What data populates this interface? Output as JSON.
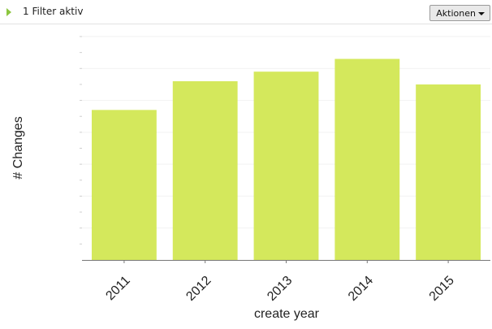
{
  "filter": {
    "label": "1 Filter aktiv",
    "actions_label": "Aktionen",
    "toggle_icon": "triangle-right-icon",
    "actions_icon": "caret-down-icon"
  },
  "chart_data": {
    "type": "bar",
    "categories": [
      "2011",
      "2012",
      "2013",
      "2014",
      "2015"
    ],
    "values": [
      47,
      56,
      59,
      63,
      55
    ],
    "xlabel": "create year",
    "ylabel": "# Changes",
    "ylim": [
      0,
      70
    ],
    "bar_color": "#d4e85c",
    "grid": true,
    "grid_color": "#f2f2f2",
    "axis_color": "#777777",
    "legend": "none"
  }
}
